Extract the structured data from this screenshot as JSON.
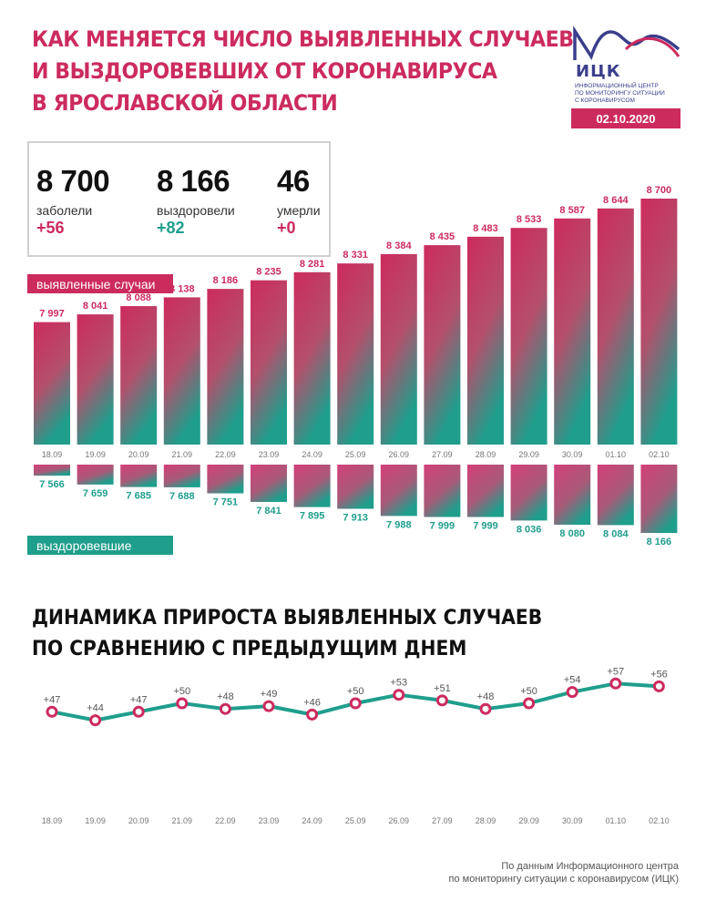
{
  "header": {
    "title_lines": [
      "КАК МЕНЯЕТСЯ ЧИСЛО ВЫЯВЛЕННЫХ СЛУЧАЕВ",
      "И ВЫЗДОРОВЕВШИХ ОТ КОРОНАВИРУСА",
      "В ЯРОСЛАВСКОЙ ОБЛАСТИ"
    ]
  },
  "logo": {
    "name": "ИЦК",
    "subtitle_lines": [
      "ИНФОРМАЦИОННЫЙ ЦЕНТР",
      "ПО МОНИТОРИНГУ СИТУАЦИИ",
      "С КОРОНАВИРУСОМ"
    ],
    "date": "02.10.2020",
    "color": "#3a3e8c"
  },
  "summary": {
    "sick": {
      "value": "8 700",
      "label": "заболели",
      "delta": "+56"
    },
    "recovered": {
      "value": "8 166",
      "label": "выздоровели",
      "delta": "+82"
    },
    "died": {
      "value": "46",
      "label": "умерли",
      "delta": "+0"
    }
  },
  "legend": {
    "cases_label": "выявленные случаи",
    "recovered_label": "выздоровевшие"
  },
  "colors": {
    "accent": "#cc2b5e",
    "teal": "#1f9e8c"
  },
  "chart_data": [
    {
      "type": "bar",
      "categories": [
        "18.09",
        "19.09",
        "20.09",
        "21.09",
        "22.09",
        "23.09",
        "24.09",
        "25.09",
        "26.09",
        "27.09",
        "28.09",
        "29.09",
        "30.09",
        "01.10",
        "02.10"
      ],
      "series": [
        {
          "name": "выявленные случаи",
          "values": [
            7997,
            8041,
            8088,
            8138,
            8186,
            8235,
            8281,
            8331,
            8384,
            8435,
            8483,
            8533,
            8587,
            8644,
            8700
          ],
          "labels": [
            "7 997",
            "8 041",
            "8 088",
            "8 138",
            "8 186",
            "8 235",
            "8 281",
            "8 331",
            "8 384",
            "8 435",
            "8 483",
            "8 533",
            "8 587",
            "8 644",
            "8 700"
          ]
        },
        {
          "name": "выздоровевшие",
          "values": [
            7566,
            7659,
            7685,
            7688,
            7751,
            7841,
            7895,
            7913,
            7988,
            7999,
            7999,
            8036,
            8080,
            8084,
            8166
          ],
          "labels": [
            "7 566",
            "7 659",
            "7 685",
            "7 688",
            "7 751",
            "7 841",
            "7 895",
            "7 913",
            "7 988",
            "7 999",
            "7 999",
            "8 036",
            "8 080",
            "8 084",
            "8 166"
          ]
        }
      ],
      "cases_axis_min": 7300,
      "recovered_axis_min": 7450
    },
    {
      "type": "line",
      "title_lines": [
        "ДИНАМИКА ПРИРОСТА ВЫЯВЛЕННЫХ СЛУЧАЕВ",
        "ПО СРАВНЕНИЮ С ПРЕДЫДУЩИМ ДНЕМ"
      ],
      "x": [
        "18.09",
        "19.09",
        "20.09",
        "21.09",
        "22.09",
        "23.09",
        "24.09",
        "25.09",
        "26.09",
        "27.09",
        "28.09",
        "29.09",
        "30.09",
        "01.10",
        "02.10"
      ],
      "series": [
        {
          "values": [
            47,
            44,
            47,
            50,
            48,
            49,
            46,
            50,
            53,
            51,
            48,
            50,
            54,
            57,
            56
          ],
          "labels": [
            "+47",
            "+44",
            "+47",
            "+50",
            "+48",
            "+49",
            "+46",
            "+50",
            "+53",
            "+51",
            "+48",
            "+50",
            "+54",
            "+57",
            "+56"
          ],
          "color": "#1f9e8c",
          "marker_color": "#cc2b5e"
        }
      ],
      "ylim": [
        25,
        75
      ]
    }
  ],
  "footer": {
    "source_lines": [
      "По данным Информационного центра",
      "по мониторингу ситуации с коронавирусом (ИЦК)"
    ]
  }
}
